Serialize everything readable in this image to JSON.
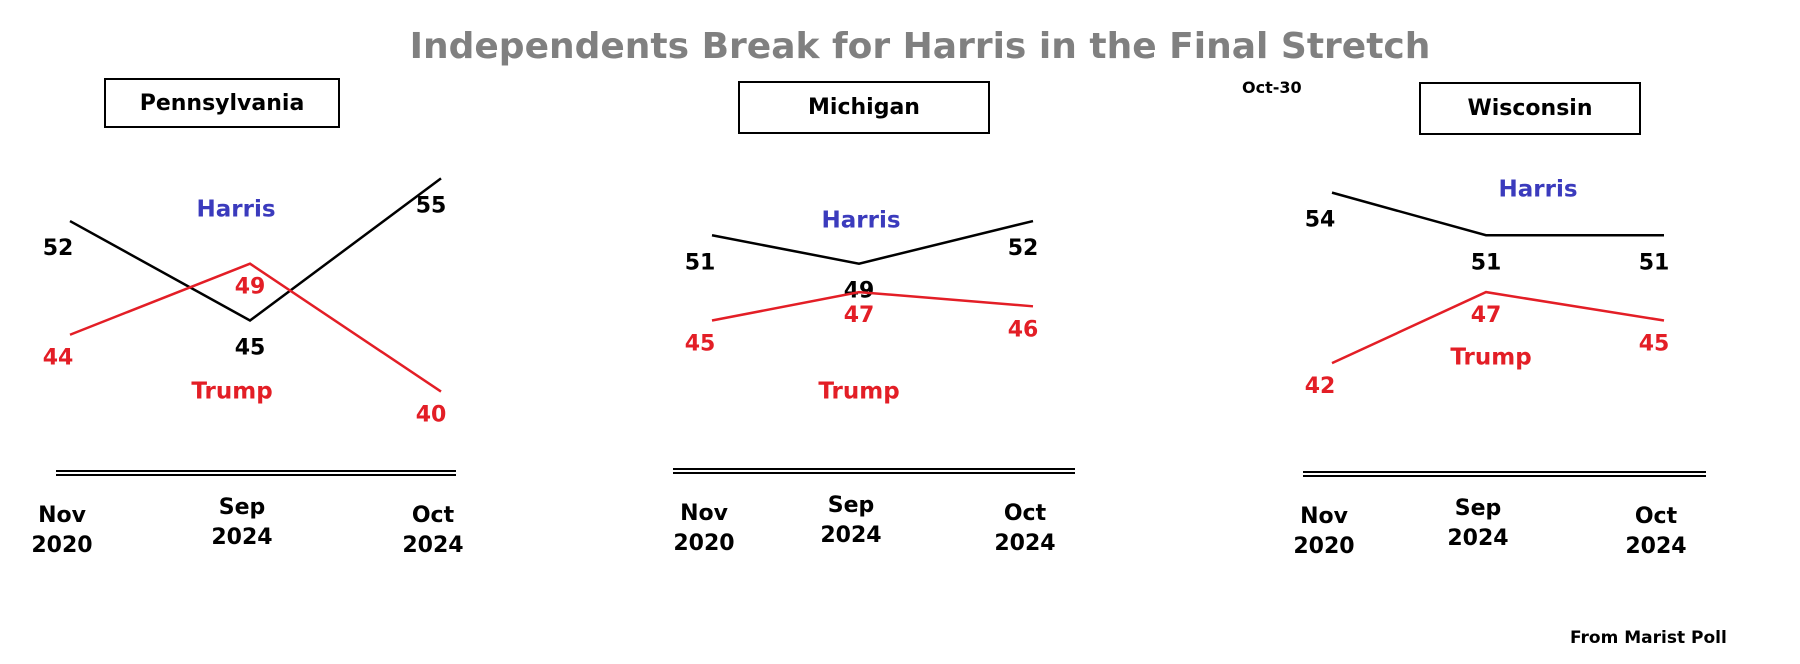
{
  "title": "Independents Break for Harris in the Final Stretch",
  "date_note": "Oct-30",
  "source": "From Marist Poll",
  "chart_data": [
    {
      "type": "line",
      "title": "Pennsylvania",
      "categories": [
        "Nov\n2020",
        "Sep\n2024",
        "Oct\n2024"
      ],
      "ylim": [
        38,
        57
      ],
      "series": [
        {
          "name": "Harris",
          "color": "#000000",
          "label_color": "#3b3bbd",
          "values": [
            52,
            45,
            55
          ]
        },
        {
          "name": "Trump",
          "color": "#e31e26",
          "label_color": "#e31e26",
          "values": [
            44,
            49,
            40
          ]
        }
      ]
    },
    {
      "type": "line",
      "title": "Michigan",
      "categories": [
        "Nov\n2020",
        "Sep\n2024",
        "Oct\n2024"
      ],
      "ylim": [
        38,
        57
      ],
      "series": [
        {
          "name": "Harris",
          "color": "#000000",
          "label_color": "#3b3bbd",
          "values": [
            51,
            49,
            52
          ]
        },
        {
          "name": "Trump",
          "color": "#e31e26",
          "label_color": "#e31e26",
          "values": [
            45,
            47,
            46
          ]
        }
      ]
    },
    {
      "type": "line",
      "title": "Wisconsin",
      "categories": [
        "Nov\n2020",
        "Sep\n2024",
        "Oct\n2024"
      ],
      "ylim": [
        38,
        57
      ],
      "series": [
        {
          "name": "Harris",
          "color": "#000000",
          "label_color": "#3b3bbd",
          "values": [
            54,
            51,
            51
          ]
        },
        {
          "name": "Trump",
          "color": "#e31e26",
          "label_color": "#e31e26",
          "values": [
            42,
            47,
            45
          ]
        }
      ]
    }
  ]
}
